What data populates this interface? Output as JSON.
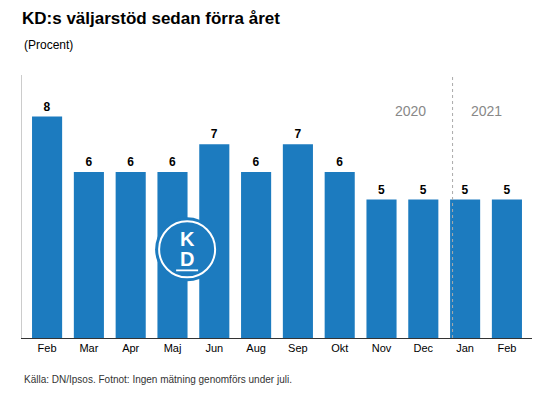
{
  "chart_data": {
    "type": "bar",
    "title": "KD:s väljarstöd sedan förra året",
    "subtitle": "(Procent)",
    "footnote": "Källa: DN/Ipsos. Fotnot: Ingen mätning genomförs under juli.",
    "categories": [
      "Feb",
      "Mar",
      "Apr",
      "Maj",
      "Jun",
      "Aug",
      "Sep",
      "Okt",
      "Nov",
      "Dec",
      "Jan",
      "Feb"
    ],
    "values": [
      8,
      6,
      6,
      6,
      7,
      6,
      7,
      6,
      5,
      5,
      5,
      5
    ],
    "color": "#1c7bbf",
    "ylim": [
      0,
      9.5
    ],
    "yticks": [],
    "grid": false,
    "data_labels": true,
    "tick_labels": "x",
    "annotations": [
      {
        "text": "2020",
        "color": "#888888"
      },
      {
        "text": "2021",
        "color": "#888888"
      },
      {
        "text": "K",
        "color": "#ffffff"
      },
      {
        "text": "D",
        "color": "#ffffff"
      }
    ]
  }
}
